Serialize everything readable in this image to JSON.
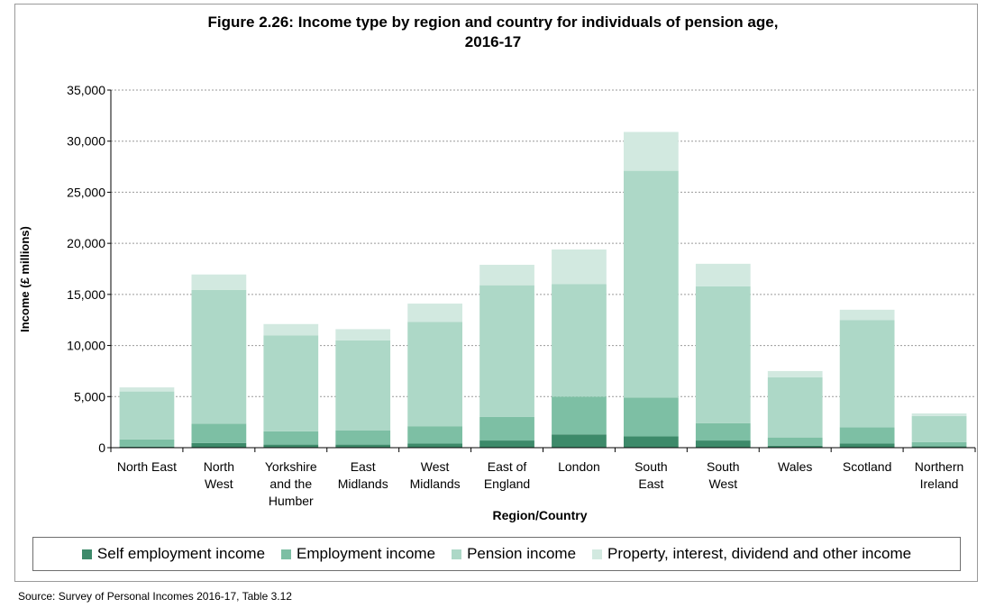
{
  "chart_data": {
    "type": "bar",
    "stacked": true,
    "title_line1": "Figure 2.26: Income type by region and country for individuals of pension age,",
    "title_line2": "2016-17",
    "xlabel": "Region/Country",
    "ylabel": "Income  (£ millions)",
    "ylim": [
      0,
      35000
    ],
    "yticks": [
      "0",
      "5,000",
      "10,000",
      "15,000",
      "20,000",
      "25,000",
      "30,000",
      "35,000"
    ],
    "grid": true,
    "legend_position": "bottom",
    "categories": [
      [
        "North East"
      ],
      [
        "North",
        "West"
      ],
      [
        "Yorkshire",
        "and the",
        "Humber"
      ],
      [
        "East",
        "Midlands"
      ],
      [
        "West",
        "Midlands"
      ],
      [
        "East of",
        "England"
      ],
      [
        "London"
      ],
      [
        "South",
        "East"
      ],
      [
        "South",
        "West"
      ],
      [
        "Wales"
      ],
      [
        "Scotland"
      ],
      [
        "Northern",
        "Ireland"
      ]
    ],
    "series": [
      {
        "name": "Self employment income",
        "color": "#3d8a6a",
        "values": [
          100,
          450,
          300,
          300,
          400,
          700,
          1300,
          1100,
          700,
          200,
          400,
          150
        ]
      },
      {
        "name": "Employment income",
        "color": "#7dbfa4",
        "values": [
          700,
          1900,
          1300,
          1400,
          1700,
          2300,
          3700,
          3800,
          1700,
          800,
          1600,
          400
        ]
      },
      {
        "name": "Pension income",
        "color": "#add8c7",
        "values": [
          4700,
          13100,
          9400,
          8800,
          10200,
          12900,
          11000,
          22200,
          13400,
          5900,
          10500,
          2550
        ]
      },
      {
        "name": "Property, interest, dividend and other income",
        "color": "#d2e9e0",
        "values": [
          400,
          1500,
          1100,
          1100,
          1800,
          2000,
          3400,
          3800,
          2200,
          600,
          1000,
          250
        ]
      }
    ]
  },
  "source": "Source: Survey of Personal Incomes 2016-17, Table 3.12"
}
